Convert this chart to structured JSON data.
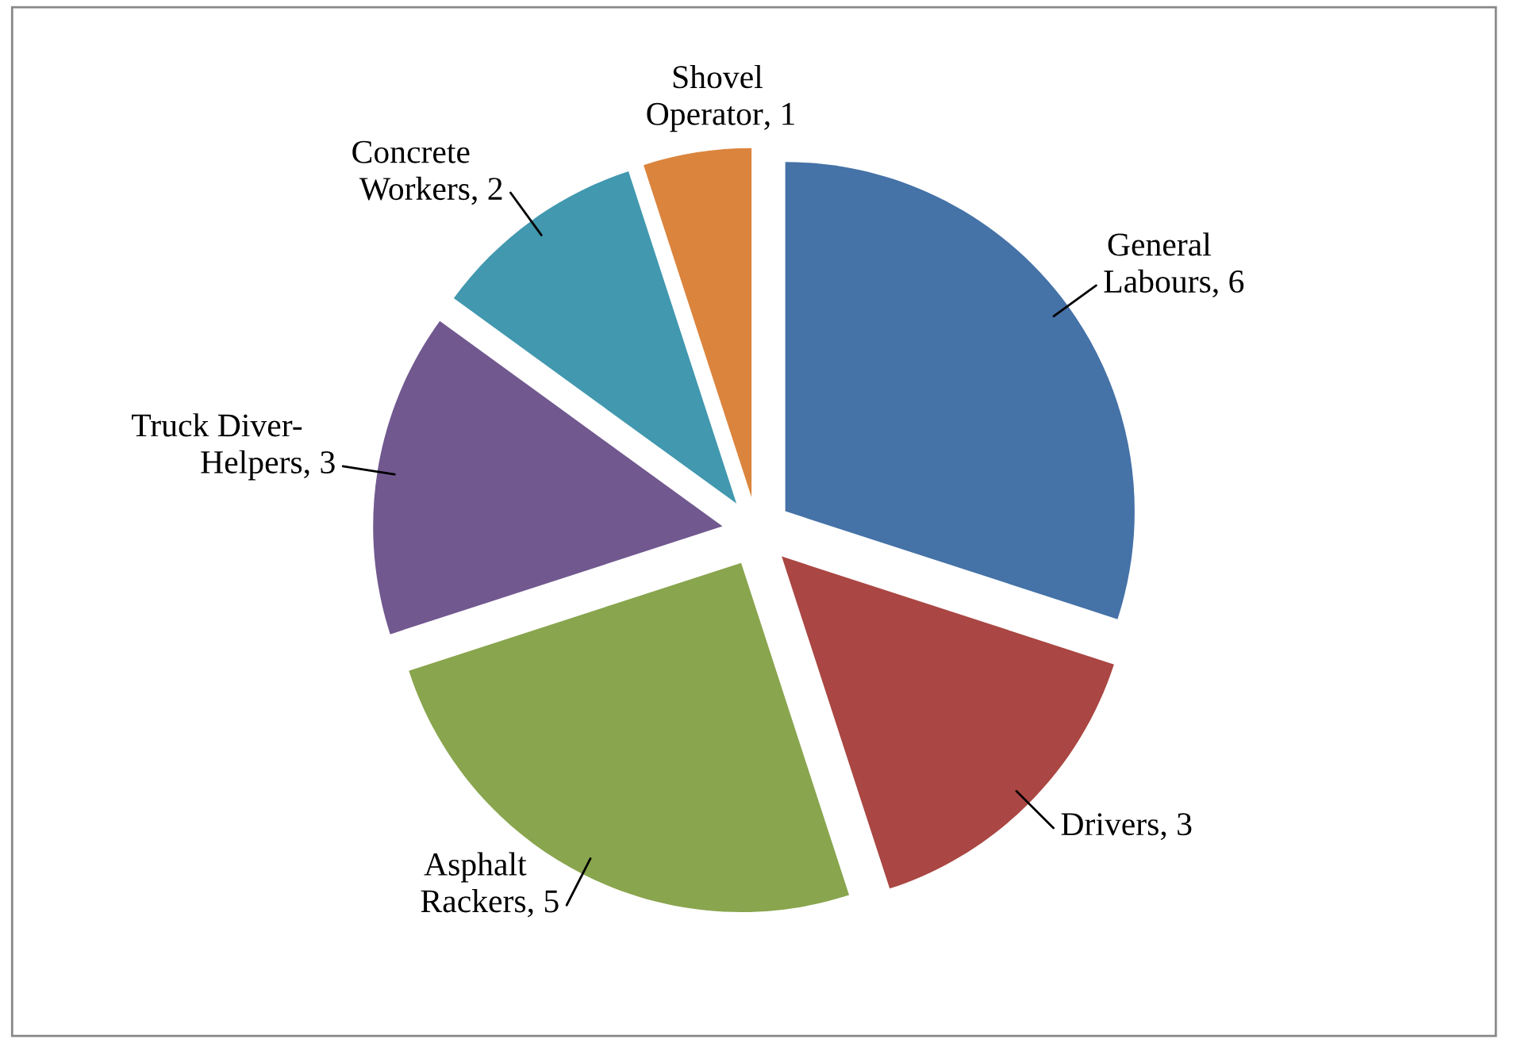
{
  "chart_data": {
    "type": "pie",
    "categories": [
      "General Labours",
      "Drivers",
      "Asphalt Rackers",
      "Truck Diver-Helpers",
      "Concrete Workers",
      "Shovel Operator"
    ],
    "values": [
      6,
      3,
      5,
      3,
      2,
      1
    ],
    "colors": [
      "#4572a7",
      "#aa4643",
      "#89a54e",
      "#71588f",
      "#4198af",
      "#db843d"
    ],
    "value_labels": [
      ", 6",
      ", 3",
      ", 5",
      ", 3",
      ", 2",
      ", 1"
    ],
    "legend": false
  }
}
